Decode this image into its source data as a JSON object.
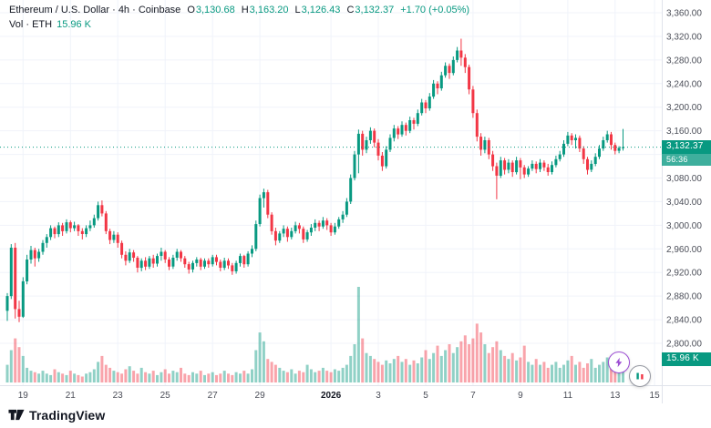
{
  "header": {
    "symbol_title": "Ethereum / U.S. Dollar · 4h · Coinbase",
    "ohlc": {
      "o_label": "O",
      "o_value": "3,130.68",
      "h_label": "H",
      "h_value": "3,163.20",
      "l_label": "L",
      "l_value": "3,126.43",
      "c_label": "C",
      "c_value": "3,132.37",
      "change": "+1.70 (+0.05%)"
    },
    "volume_row": {
      "label": "Vol · ETH",
      "value": "15.96 K"
    }
  },
  "price_scale": {
    "current_price_label": "3,132.37",
    "countdown": "56:36",
    "volume_label": "15.96 K",
    "ticks": [
      {
        "label": "3,360.00",
        "price": 3360
      },
      {
        "label": "3,320.00",
        "price": 3320
      },
      {
        "label": "3,280.00",
        "price": 3280
      },
      {
        "label": "3,240.00",
        "price": 3240
      },
      {
        "label": "3,200.00",
        "price": 3200
      },
      {
        "label": "3,160.00",
        "price": 3160
      },
      {
        "label": "3,080.00",
        "price": 3080
      },
      {
        "label": "3,040.00",
        "price": 3040
      },
      {
        "label": "3,000.00",
        "price": 3000
      },
      {
        "label": "2,960.00",
        "price": 2960
      },
      {
        "label": "2,920.00",
        "price": 2920
      },
      {
        "label": "2,880.00",
        "price": 2880
      },
      {
        "label": "2,840.00",
        "price": 2840
      },
      {
        "label": "2,800.00",
        "price": 2800
      }
    ]
  },
  "time_scale": {
    "ticks": [
      {
        "label": "19",
        "index": 4
      },
      {
        "label": "21",
        "index": 16
      },
      {
        "label": "23",
        "index": 28
      },
      {
        "label": "25",
        "index": 40
      },
      {
        "label": "27",
        "index": 52
      },
      {
        "label": "29",
        "index": 64
      },
      {
        "label": "2026",
        "index": 82,
        "bold": true
      },
      {
        "label": "3",
        "index": 94
      },
      {
        "label": "5",
        "index": 106
      },
      {
        "label": "7",
        "index": 118
      },
      {
        "label": "9",
        "index": 130
      },
      {
        "label": "11",
        "index": 142
      },
      {
        "label": "13",
        "index": 154
      },
      {
        "label": "15",
        "index": 164
      }
    ]
  },
  "footer": {
    "logo_text": "TradingView"
  },
  "colors": {
    "up": "#089981",
    "down": "#F23645",
    "vol_up": "rgba(8,153,129,0.45)",
    "vol_down": "rgba(242,54,69,0.45)",
    "grid": "#f0f3fa",
    "axis_line": "#e0e3eb",
    "axis_text": "#4c4f59",
    "text": "#131722"
  },
  "chart_data": {
    "type": "candlestick",
    "title": "Ethereum / U.S. Dollar, 4h, Coinbase",
    "ylabel": "Price (USD)",
    "price_axis": {
      "min": 2800,
      "max": 3360,
      "grid_step": 40
    },
    "current_price": 3132.37,
    "last_bar_countdown": "56:36",
    "last_volume_k_eth": 15.96,
    "volume_unit": "K ETH",
    "candles_ohlc": [
      [
        2855,
        2885,
        2838,
        2880
      ],
      [
        2880,
        2968,
        2875,
        2962
      ],
      [
        2962,
        2970,
        2842,
        2858
      ],
      [
        2858,
        2872,
        2836,
        2845
      ],
      [
        2845,
        2912,
        2843,
        2905
      ],
      [
        2905,
        2950,
        2900,
        2942
      ],
      [
        2942,
        2965,
        2935,
        2958
      ],
      [
        2958,
        2962,
        2930,
        2944
      ],
      [
        2944,
        2960,
        2938,
        2955
      ],
      [
        2955,
        2975,
        2950,
        2970
      ],
      [
        2970,
        2985,
        2962,
        2980
      ],
      [
        2980,
        3000,
        2975,
        2995
      ],
      [
        2995,
        2998,
        2978,
        2985
      ],
      [
        2985,
        3005,
        2980,
        3000
      ],
      [
        3000,
        3004,
        2982,
        2990
      ],
      [
        2990,
        3010,
        2986,
        3005
      ],
      [
        3005,
        3008,
        2988,
        2995
      ],
      [
        2995,
        3006,
        2990,
        3000
      ],
      [
        3000,
        3002,
        2982,
        2990
      ],
      [
        2990,
        2995,
        2976,
        2985
      ],
      [
        2985,
        3000,
        2980,
        2995
      ],
      [
        2995,
        3008,
        2990,
        3000
      ],
      [
        3000,
        3018,
        2996,
        3012
      ],
      [
        3012,
        3040,
        3008,
        3034
      ],
      [
        3034,
        3042,
        3015,
        3020
      ],
      [
        3020,
        3024,
        2985,
        2990
      ],
      [
        2990,
        2994,
        2968,
        2975
      ],
      [
        2975,
        2990,
        2970,
        2984
      ],
      [
        2984,
        2988,
        2962,
        2970
      ],
      [
        2970,
        2974,
        2944,
        2950
      ],
      [
        2950,
        2956,
        2932,
        2940
      ],
      [
        2940,
        2960,
        2936,
        2954
      ],
      [
        2954,
        2958,
        2938,
        2945
      ],
      [
        2945,
        2948,
        2920,
        2928
      ],
      [
        2928,
        2944,
        2922,
        2940
      ],
      [
        2940,
        2946,
        2924,
        2930
      ],
      [
        2930,
        2948,
        2926,
        2944
      ],
      [
        2944,
        2950,
        2928,
        2935
      ],
      [
        2935,
        2952,
        2930,
        2948
      ],
      [
        2948,
        2962,
        2940,
        2955
      ],
      [
        2955,
        2958,
        2936,
        2942
      ],
      [
        2942,
        2946,
        2924,
        2930
      ],
      [
        2930,
        2950,
        2926,
        2945
      ],
      [
        2945,
        2960,
        2940,
        2955
      ],
      [
        2955,
        2958,
        2938,
        2944
      ],
      [
        2944,
        2948,
        2928,
        2934
      ],
      [
        2934,
        2938,
        2918,
        2925
      ],
      [
        2925,
        2940,
        2920,
        2936
      ],
      [
        2936,
        2946,
        2930,
        2942
      ],
      [
        2942,
        2945,
        2924,
        2930
      ],
      [
        2930,
        2944,
        2926,
        2940
      ],
      [
        2940,
        2944,
        2928,
        2934
      ],
      [
        2934,
        2950,
        2930,
        2946
      ],
      [
        2946,
        2950,
        2932,
        2938
      ],
      [
        2938,
        2942,
        2922,
        2928
      ],
      [
        2928,
        2945,
        2924,
        2940
      ],
      [
        2940,
        2944,
        2926,
        2932
      ],
      [
        2932,
        2936,
        2916,
        2922
      ],
      [
        2922,
        2940,
        2918,
        2936
      ],
      [
        2936,
        2952,
        2930,
        2948
      ],
      [
        2948,
        2950,
        2928,
        2934
      ],
      [
        2934,
        2956,
        2930,
        2952
      ],
      [
        2952,
        2966,
        2946,
        2960
      ],
      [
        2960,
        3008,
        2956,
        3002
      ],
      [
        3002,
        3052,
        2998,
        3046
      ],
      [
        3046,
        3062,
        3030,
        3056
      ],
      [
        3056,
        3060,
        3012,
        3018
      ],
      [
        3018,
        3022,
        2984,
        2990
      ],
      [
        2990,
        2996,
        2966,
        2974
      ],
      [
        2974,
        2990,
        2970,
        2986
      ],
      [
        2986,
        3000,
        2980,
        2994
      ],
      [
        2994,
        2998,
        2972,
        2980
      ],
      [
        2980,
        2996,
        2976,
        2990
      ],
      [
        2990,
        3006,
        2986,
        3000
      ],
      [
        3000,
        3004,
        2986,
        2994
      ],
      [
        2994,
        2998,
        2970,
        2976
      ],
      [
        2976,
        2992,
        2972,
        2988
      ],
      [
        2988,
        3002,
        2982,
        2996
      ],
      [
        2996,
        3010,
        2990,
        3004
      ],
      [
        3004,
        3008,
        2990,
        2998
      ],
      [
        2998,
        3014,
        2994,
        3008
      ],
      [
        3008,
        3012,
        2992,
        3000
      ],
      [
        3000,
        3004,
        2982,
        2988
      ],
      [
        2988,
        3004,
        2984,
        2998
      ],
      [
        2998,
        3014,
        2994,
        3010
      ],
      [
        3010,
        3024,
        3004,
        3018
      ],
      [
        3018,
        3046,
        3014,
        3040
      ],
      [
        3040,
        3086,
        3036,
        3080
      ],
      [
        3080,
        3126,
        3076,
        3120
      ],
      [
        3120,
        3162,
        3088,
        3155
      ],
      [
        3155,
        3160,
        3118,
        3128
      ],
      [
        3128,
        3150,
        3122,
        3144
      ],
      [
        3144,
        3166,
        3138,
        3160
      ],
      [
        3160,
        3164,
        3132,
        3140
      ],
      [
        3140,
        3146,
        3110,
        3118
      ],
      [
        3118,
        3124,
        3092,
        3100
      ],
      [
        3100,
        3134,
        3096,
        3128
      ],
      [
        3128,
        3154,
        3124,
        3148
      ],
      [
        3148,
        3170,
        3142,
        3164
      ],
      [
        3164,
        3168,
        3146,
        3154
      ],
      [
        3154,
        3176,
        3150,
        3170
      ],
      [
        3170,
        3174,
        3152,
        3160
      ],
      [
        3160,
        3184,
        3156,
        3178
      ],
      [
        3178,
        3182,
        3162,
        3172
      ],
      [
        3172,
        3196,
        3168,
        3190
      ],
      [
        3190,
        3214,
        3186,
        3208
      ],
      [
        3208,
        3212,
        3190,
        3198
      ],
      [
        3198,
        3224,
        3194,
        3218
      ],
      [
        3218,
        3246,
        3214,
        3240
      ],
      [
        3240,
        3244,
        3222,
        3232
      ],
      [
        3232,
        3260,
        3228,
        3254
      ],
      [
        3254,
        3276,
        3250,
        3270
      ],
      [
        3270,
        3274,
        3248,
        3258
      ],
      [
        3258,
        3286,
        3254,
        3280
      ],
      [
        3280,
        3302,
        3276,
        3296
      ],
      [
        3296,
        3316,
        3270,
        3284
      ],
      [
        3284,
        3290,
        3258,
        3268
      ],
      [
        3268,
        3272,
        3222,
        3230
      ],
      [
        3230,
        3236,
        3182,
        3190
      ],
      [
        3190,
        3196,
        3142,
        3150
      ],
      [
        3150,
        3156,
        3118,
        3128
      ],
      [
        3128,
        3150,
        3122,
        3144
      ],
      [
        3144,
        3148,
        3112,
        3120
      ],
      [
        3120,
        3126,
        3092,
        3100
      ],
      [
        3100,
        3106,
        3044,
        3084
      ],
      [
        3084,
        3116,
        3080,
        3110
      ],
      [
        3110,
        3114,
        3086,
        3094
      ],
      [
        3094,
        3112,
        3088,
        3106
      ],
      [
        3106,
        3110,
        3082,
        3090
      ],
      [
        3090,
        3116,
        3086,
        3110
      ],
      [
        3110,
        3114,
        3078,
        3098
      ],
      [
        3098,
        3102,
        3080,
        3086
      ],
      [
        3086,
        3100,
        3082,
        3096
      ],
      [
        3096,
        3110,
        3092,
        3104
      ],
      [
        3104,
        3108,
        3088,
        3095
      ],
      [
        3095,
        3112,
        3090,
        3106
      ],
      [
        3106,
        3110,
        3092,
        3098
      ],
      [
        3098,
        3104,
        3084,
        3090
      ],
      [
        3090,
        3108,
        3086,
        3102
      ],
      [
        3102,
        3118,
        3098,
        3112
      ],
      [
        3112,
        3126,
        3108,
        3120
      ],
      [
        3120,
        3144,
        3116,
        3138
      ],
      [
        3138,
        3158,
        3134,
        3152
      ],
      [
        3152,
        3156,
        3136,
        3144
      ],
      [
        3144,
        3154,
        3130,
        3148
      ],
      [
        3148,
        3152,
        3124,
        3130
      ],
      [
        3130,
        3134,
        3104,
        3112
      ],
      [
        3112,
        3116,
        3086,
        3094
      ],
      [
        3094,
        3110,
        3090,
        3104
      ],
      [
        3104,
        3122,
        3100,
        3116
      ],
      [
        3116,
        3136,
        3112,
        3130
      ],
      [
        3130,
        3150,
        3126,
        3144
      ],
      [
        3144,
        3160,
        3140,
        3154
      ],
      [
        3154,
        3158,
        3128,
        3136
      ],
      [
        3136,
        3140,
        3120,
        3126
      ],
      [
        3126,
        3134,
        3122,
        3131
      ],
      [
        3130.68,
        3163.2,
        3126.43,
        3132.37
      ]
    ],
    "volumes_k_eth": [
      12,
      22,
      30,
      24,
      18,
      10,
      8,
      7,
      6,
      8,
      6,
      5,
      9,
      7,
      6,
      5,
      8,
      6,
      5,
      4,
      6,
      7,
      9,
      14,
      18,
      12,
      10,
      8,
      7,
      6,
      9,
      11,
      8,
      6,
      10,
      7,
      6,
      8,
      5,
      7,
      9,
      6,
      8,
      7,
      10,
      6,
      5,
      7,
      6,
      8,
      5,
      6,
      7,
      5,
      6,
      8,
      6,
      5,
      7,
      6,
      8,
      6,
      9,
      22,
      34,
      28,
      16,
      14,
      12,
      10,
      8,
      7,
      9,
      6,
      8,
      7,
      12,
      9,
      7,
      8,
      10,
      8,
      7,
      9,
      8,
      10,
      12,
      18,
      26,
      65,
      30,
      20,
      18,
      16,
      14,
      12,
      15,
      13,
      16,
      18,
      14,
      16,
      12,
      15,
      13,
      17,
      22,
      16,
      20,
      25,
      18,
      22,
      26,
      20,
      24,
      28,
      32,
      26,
      30,
      40,
      34,
      26,
      20,
      24,
      28,
      22,
      18,
      16,
      20,
      15,
      17,
      25,
      14,
      12,
      16,
      12,
      14,
      10,
      12,
      14,
      10,
      12,
      15,
      18,
      12,
      14,
      10,
      13,
      16,
      10,
      12,
      14,
      17,
      13,
      11,
      9,
      15.96
    ]
  }
}
